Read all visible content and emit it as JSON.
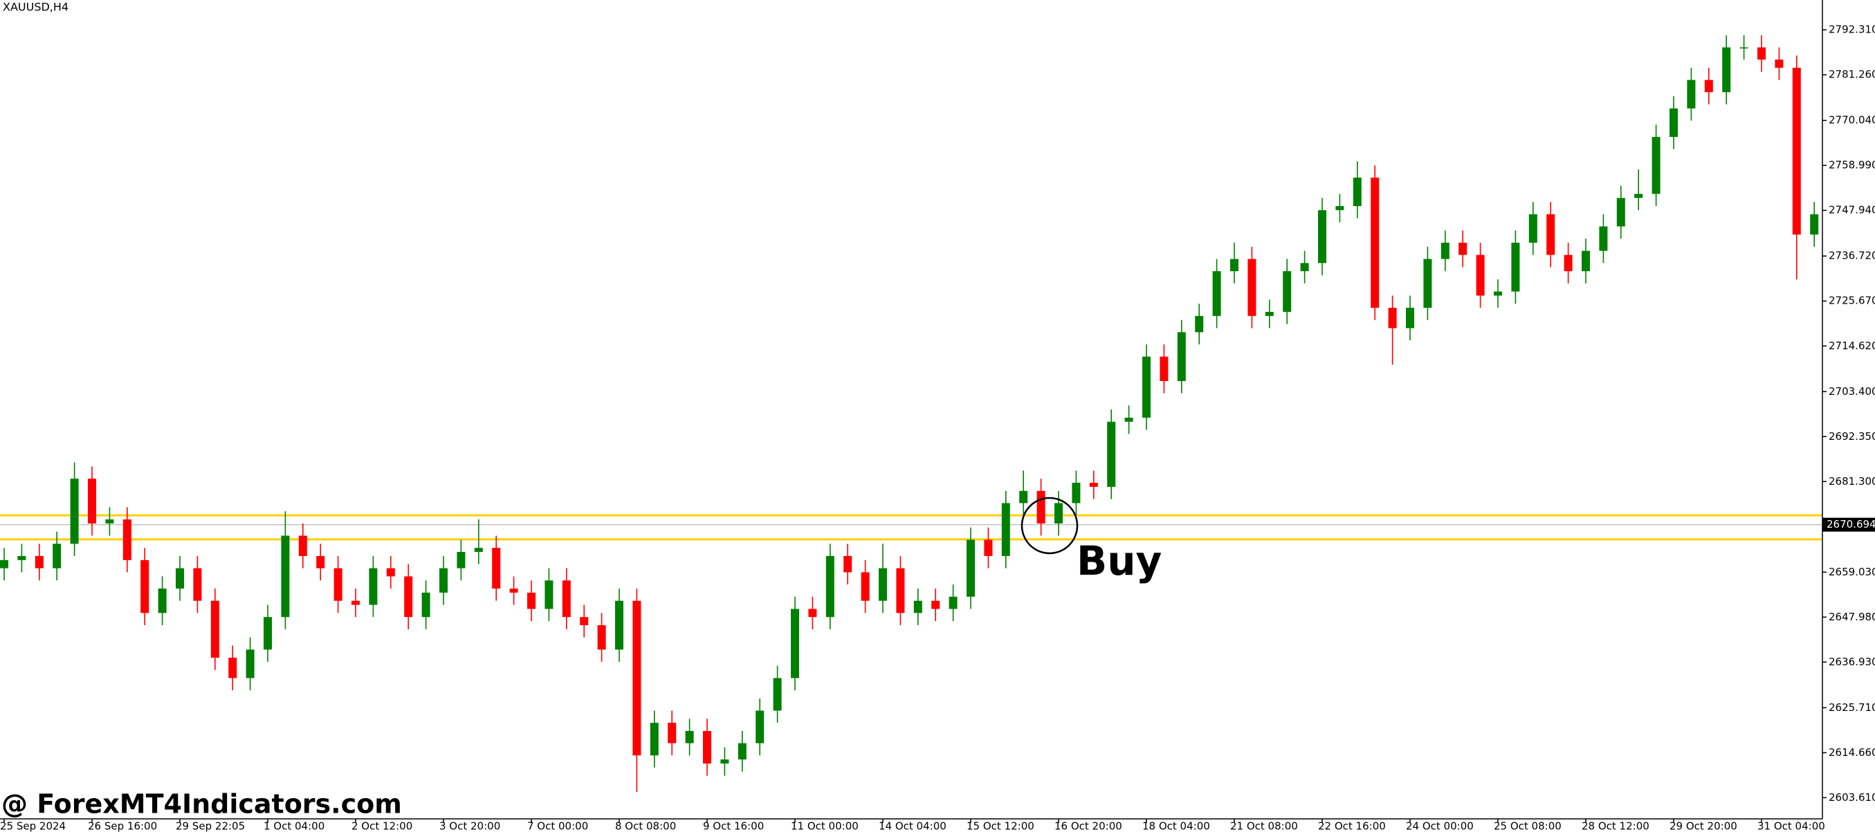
{
  "chart_data": {
    "type": "candlestick",
    "title": "XAUUSD,H4",
    "watermark": "@ ForexMT4Indicators.com",
    "annotation": "Buy",
    "up_color": "#008000",
    "down_color": "#ff0000",
    "level_color": "#ffd000",
    "levels": [
      2673.0,
      2667.1
    ],
    "current_price": 2670.694,
    "ylim": [
      2598.4,
      2799.65
    ],
    "yticks": [
      {
        "value": 2792.31,
        "label": "2792.310"
      },
      {
        "value": 2781.26,
        "label": "2781.260"
      },
      {
        "value": 2770.04,
        "label": "2770.040"
      },
      {
        "value": 2758.99,
        "label": "2758.990"
      },
      {
        "value": 2747.94,
        "label": "2747.940"
      },
      {
        "value": 2736.72,
        "label": "2736.720"
      },
      {
        "value": 2725.67,
        "label": "2725.670"
      },
      {
        "value": 2714.62,
        "label": "2714.620"
      },
      {
        "value": 2703.4,
        "label": "2703.400"
      },
      {
        "value": 2692.35,
        "label": "2692.350"
      },
      {
        "value": 2681.3,
        "label": "2681.300"
      },
      {
        "value": 2659.03,
        "label": "2659.030"
      },
      {
        "value": 2647.98,
        "label": "2647.980"
      },
      {
        "value": 2636.93,
        "label": "2636.930"
      },
      {
        "value": 2625.71,
        "label": "2625.710"
      },
      {
        "value": 2614.66,
        "label": "2614.660"
      },
      {
        "value": 2603.61,
        "label": "2603.610"
      }
    ],
    "categories": [
      "25 Sep 2024",
      null,
      null,
      null,
      null,
      "26 Sep 16:00",
      null,
      null,
      null,
      null,
      "29 Sep 22:05",
      null,
      null,
      null,
      null,
      "1 Oct 04:00",
      null,
      null,
      null,
      null,
      "2 Oct 12:00",
      null,
      null,
      null,
      null,
      "3 Oct 20:00",
      null,
      null,
      null,
      null,
      "7 Oct 00:00",
      null,
      null,
      null,
      null,
      "8 Oct 08:00",
      null,
      null,
      null,
      null,
      "9 Oct 16:00",
      null,
      null,
      null,
      null,
      "11 Oct 00:00",
      null,
      null,
      null,
      null,
      "14 Oct 04:00",
      null,
      null,
      null,
      null,
      "15 Oct 12:00",
      null,
      null,
      null,
      null,
      "16 Oct 20:00",
      null,
      null,
      null,
      null,
      "18 Oct 04:00",
      null,
      null,
      null,
      null,
      "21 Oct 08:00",
      null,
      null,
      null,
      null,
      "22 Oct 16:00",
      null,
      null,
      null,
      null,
      "24 Oct 00:00",
      null,
      null,
      null,
      null,
      "25 Oct 08:00",
      null,
      null,
      null,
      null,
      "28 Oct 12:00",
      null,
      null,
      null,
      null,
      "29 Oct 20:00",
      null,
      null,
      null,
      null,
      "31 Oct 04:00",
      null,
      null,
      null
    ],
    "open": [
      2660,
      2662,
      2663,
      2660,
      2666,
      2682,
      2671,
      2672,
      2662,
      2649,
      2655,
      2660,
      2652,
      2638,
      2633,
      2640,
      2648,
      2668,
      2663,
      2660,
      2652,
      2651,
      2660,
      2658,
      2648,
      2654,
      2660,
      2664,
      2665,
      2655,
      2654,
      2650,
      2657,
      2648,
      2646,
      2640,
      2652,
      2614,
      2622,
      2617,
      2620,
      2612,
      2613,
      2617,
      2625,
      2633,
      2650,
      2648,
      2663,
      2659,
      2652,
      2660,
      2649,
      2652,
      2650,
      2653,
      2667,
      2663,
      2676,
      2679,
      2671,
      2676,
      2681,
      2680,
      2696,
      2697,
      2712,
      2706,
      2718,
      2722,
      2733,
      2736,
      2722,
      2723,
      2733,
      2735,
      2748,
      2749,
      2756,
      2724,
      2719,
      2724,
      2736,
      2740,
      2737,
      2727,
      2728,
      2740,
      2747,
      2737,
      2733,
      2738,
      2744,
      2751,
      2752,
      2766,
      2773,
      2780,
      2777,
      2788,
      2788,
      2785,
      2783,
      2742
    ],
    "high": [
      2665,
      2666,
      2666,
      2669,
      2686,
      2685,
      2675,
      2675,
      2665,
      2658,
      2663,
      2663,
      2655,
      2641,
      2643,
      2651,
      2674,
      2671,
      2666,
      2663,
      2655,
      2663,
      2663,
      2661,
      2657,
      2663,
      2667,
      2672,
      2668,
      2658,
      2657,
      2660,
      2660,
      2651,
      2649,
      2655,
      2655,
      2625,
      2625,
      2623,
      2623,
      2616,
      2620,
      2628,
      2636,
      2653,
      2653,
      2666,
      2666,
      2662,
      2666,
      2663,
      2655,
      2655,
      2656,
      2670,
      2670,
      2679,
      2684,
      2682,
      2679,
      2684,
      2684,
      2699,
      2700,
      2715,
      2715,
      2721,
      2725,
      2736,
      2740,
      2739,
      2726,
      2736,
      2738,
      2751,
      2752,
      2760,
      2759,
      2727,
      2727,
      2739,
      2743,
      2743,
      2740,
      2731,
      2743,
      2750,
      2750,
      2740,
      2741,
      2747,
      2754,
      2758,
      2769,
      2776,
      2783,
      2783,
      2791,
      2791,
      2791,
      2788,
      2786,
      2750
    ],
    "low": [
      2657,
      2659,
      2657,
      2657,
      2663,
      2668,
      2668,
      2659,
      2646,
      2646,
      2652,
      2649,
      2635,
      2630,
      2630,
      2637,
      2645,
      2660,
      2657,
      2649,
      2648,
      2648,
      2655,
      2645,
      2645,
      2651,
      2657,
      2661,
      2652,
      2651,
      2647,
      2647,
      2645,
      2643,
      2637,
      2637,
      2605,
      2611,
      2614,
      2614,
      2609,
      2609,
      2610,
      2614,
      2622,
      2630,
      2645,
      2645,
      2656,
      2649,
      2649,
      2646,
      2646,
      2647,
      2647,
      2650,
      2660,
      2660,
      2673,
      2668,
      2668,
      2673,
      2677,
      2677,
      2693,
      2694,
      2703,
      2703,
      2715,
      2719,
      2730,
      2719,
      2719,
      2720,
      2730,
      2732,
      2745,
      2746,
      2721,
      2710,
      2716,
      2721,
      2733,
      2734,
      2724,
      2724,
      2725,
      2737,
      2734,
      2730,
      2730,
      2735,
      2741,
      2748,
      2749,
      2763,
      2770,
      2774,
      2774,
      2785,
      2782,
      2780,
      2731,
      2739
    ],
    "close": [
      2662,
      2663,
      2660,
      2666,
      2682,
      2671,
      2672,
      2662,
      2649,
      2655,
      2660,
      2652,
      2638,
      2633,
      2640,
      2648,
      2668,
      2663,
      2660,
      2652,
      2651,
      2660,
      2658,
      2648,
      2654,
      2660,
      2664,
      2665,
      2655,
      2654,
      2650,
      2657,
      2648,
      2646,
      2640,
      2652,
      2614,
      2622,
      2617,
      2620,
      2612,
      2613,
      2617,
      2625,
      2633,
      2650,
      2648,
      2663,
      2659,
      2652,
      2660,
      2649,
      2652,
      2650,
      2653,
      2667,
      2663,
      2676,
      2679,
      2671,
      2676,
      2681,
      2680,
      2696,
      2697,
      2712,
      2706,
      2718,
      2722,
      2733,
      2736,
      2722,
      2723,
      2733,
      2735,
      2748,
      2749,
      2756,
      2724,
      2719,
      2724,
      2736,
      2740,
      2737,
      2727,
      2728,
      2740,
      2747,
      2737,
      2733,
      2738,
      2744,
      2751,
      2752,
      2766,
      2773,
      2780,
      2777,
      2788,
      2788,
      2785,
      2783,
      2742,
      2747
    ]
  }
}
